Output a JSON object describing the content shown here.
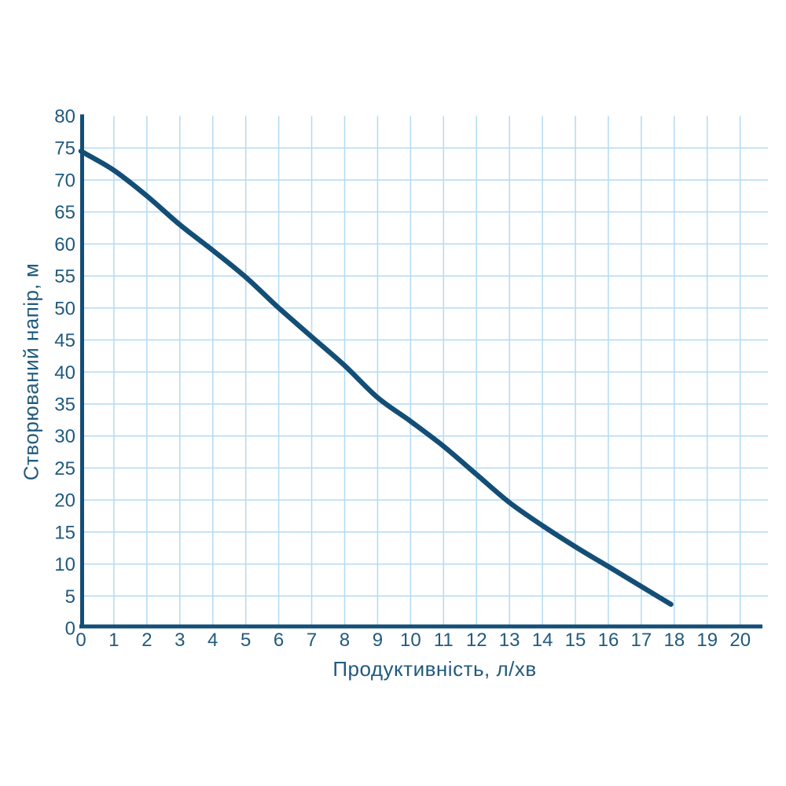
{
  "chart_data": {
    "type": "line",
    "title": "",
    "xlabel": "Продуктивність, л/хв",
    "ylabel": "Створюваний напір, м",
    "xlim": [
      0,
      20
    ],
    "ylim": [
      0,
      80
    ],
    "x_ticks": [
      0,
      1,
      2,
      3,
      4,
      5,
      6,
      7,
      8,
      9,
      10,
      11,
      12,
      13,
      14,
      15,
      16,
      17,
      18,
      19,
      20
    ],
    "y_ticks": [
      0,
      5,
      10,
      15,
      20,
      25,
      30,
      35,
      40,
      45,
      50,
      55,
      60,
      65,
      70,
      75,
      80
    ],
    "grid": true,
    "legend": "none",
    "series": [
      {
        "name": "pump-head-curve",
        "points": [
          [
            0,
            74.5
          ],
          [
            1,
            71.5
          ],
          [
            2,
            67.5
          ],
          [
            3,
            63
          ],
          [
            4,
            59
          ],
          [
            5,
            54.8
          ],
          [
            6,
            50
          ],
          [
            7,
            45.5
          ],
          [
            8,
            41
          ],
          [
            9,
            36
          ],
          [
            10,
            32.3
          ],
          [
            11,
            28.4
          ],
          [
            12,
            24
          ],
          [
            13,
            19.6
          ],
          [
            14,
            16
          ],
          [
            15,
            12.7
          ],
          [
            16,
            9.6
          ],
          [
            17,
            6.5
          ],
          [
            17.9,
            3.7
          ]
        ]
      }
    ],
    "colors": {
      "curve": "#134e76",
      "axis": "#134e76",
      "grid": "#b4daf3",
      "text": "#215a7d",
      "background": "#ffffff"
    }
  }
}
